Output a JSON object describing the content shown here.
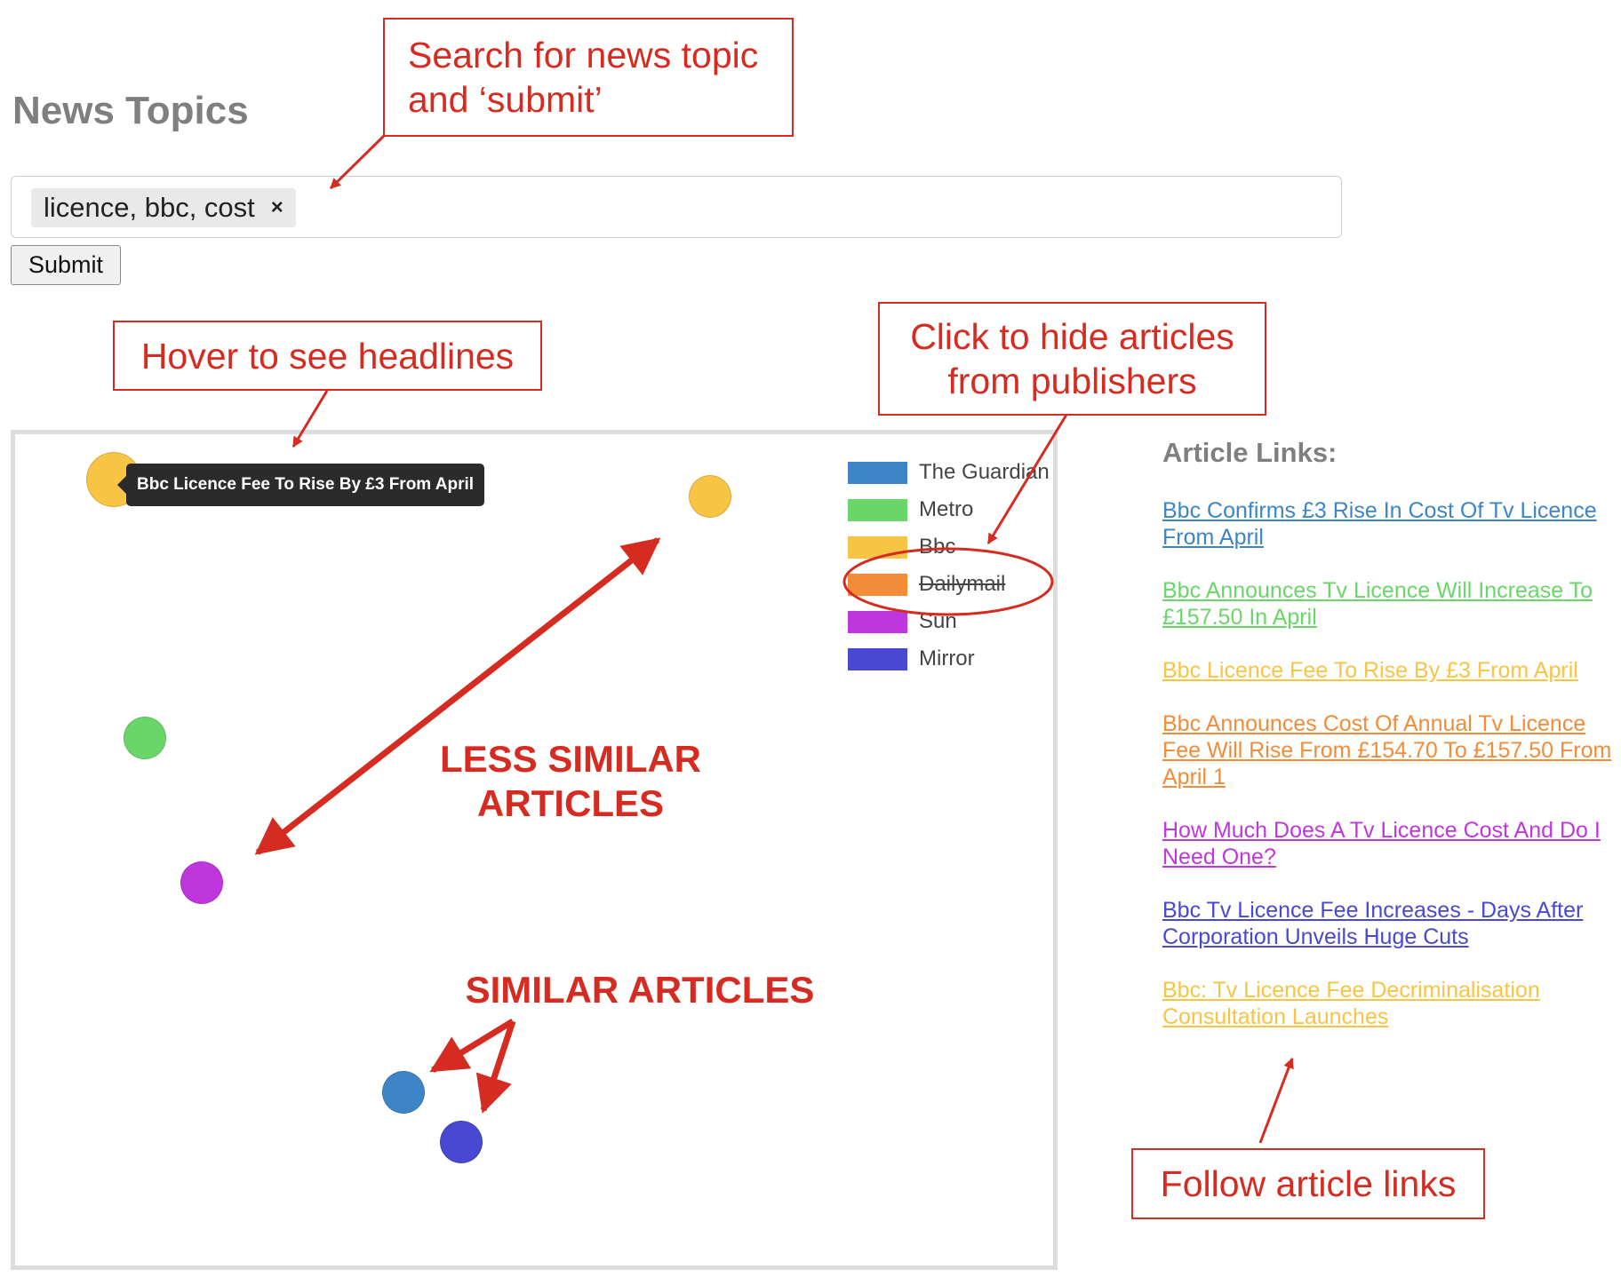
{
  "page": {
    "title": "News Topics"
  },
  "search": {
    "tags": [
      "licence, bbc, cost"
    ],
    "remove_glyph": "×",
    "submit_label": "Submit"
  },
  "chart": {
    "tooltip": "Bbc Licence Fee To Rise By £3 From April",
    "legend": [
      {
        "name": "The Guardian",
        "color": "#3d85c6",
        "hidden": false
      },
      {
        "name": "Metro",
        "color": "#6ad568",
        "hidden": false
      },
      {
        "name": "Bbc",
        "color": "#f7c443",
        "hidden": false
      },
      {
        "name": "Dailymail",
        "color": "#f28c38",
        "hidden": true
      },
      {
        "name": "Sun",
        "color": "#c036dd",
        "hidden": false
      },
      {
        "name": "Mirror",
        "color": "#4848d2",
        "hidden": false
      }
    ],
    "points": [
      {
        "publisher": "Bbc",
        "color": "#f7c443",
        "hovered": true
      },
      {
        "publisher": "Bbc",
        "color": "#f7c443",
        "hovered": false
      },
      {
        "publisher": "Metro",
        "color": "#6ad568",
        "hovered": false
      },
      {
        "publisher": "Sun",
        "color": "#c036dd",
        "hovered": false
      },
      {
        "publisher": "The Guardian",
        "color": "#3d85c6",
        "hovered": false
      },
      {
        "publisher": "Mirror",
        "color": "#4848d2",
        "hovered": false
      }
    ]
  },
  "articles": {
    "heading": "Article Links:",
    "items": [
      {
        "text": "Bbc Confirms £3 Rise In Cost Of Tv Licence From April",
        "color": "#3d85c6"
      },
      {
        "text": "Bbc Announces Tv Licence Will Increase To £157.50 In April",
        "color": "#6ad568"
      },
      {
        "text": "Bbc Licence Fee To Rise By £3 From April",
        "color": "#f7c443"
      },
      {
        "text": "Bbc Announces Cost Of Annual Tv Licence Fee Will Rise From £154.70 To £157.50 From April 1",
        "color": "#f28c38"
      },
      {
        "text": "How Much Does A Tv Licence Cost And Do I Need One?",
        "color": "#c036dd"
      },
      {
        "text": "Bbc Tv Licence Fee Increases - Days After Corporation Unveils Huge Cuts",
        "color": "#4848d2"
      },
      {
        "text": "Bbc: Tv Licence Fee Decriminalisation Consultation Launches",
        "color": "#f7c443"
      }
    ]
  },
  "annotations": {
    "search_callout": "Search for news topic\nand ‘submit’",
    "hover_callout": "Hover to see headlines",
    "hide_callout": "Click to hide articles\nfrom publishers",
    "less_similar": "LESS SIMILAR\nARTICLES",
    "similar": "SIMILAR ARTICLES",
    "follow_callout": "Follow article links",
    "color": "#d62b20"
  }
}
